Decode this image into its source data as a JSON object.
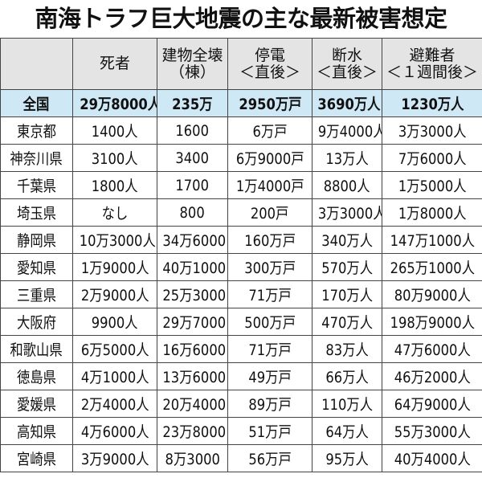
{
  "title": "南海トラフ巨大地震の主な最新被害想定",
  "table": {
    "header": [
      [
        "死者"
      ],
      [
        "建物全壊",
        "（棟）"
      ],
      [
        "停電",
        "＜直後＞"
      ],
      [
        "断水",
        "＜直後＞"
      ],
      [
        "避難者",
        "＜１週間後＞"
      ]
    ],
    "rows": [
      [
        "全国",
        "29万8000人",
        "235万",
        "2950万戸",
        "3690万人",
        "1230万人"
      ],
      [
        "東京都",
        "1400人",
        "1600",
        "6万戸",
        "9万4000人",
        "3万3000人"
      ],
      [
        "神奈川県",
        "3100人",
        "3400",
        "6万9000戸",
        "13万人",
        "7万6000人"
      ],
      [
        "千葉県",
        "1800人",
        "1700",
        "1万4000戸",
        "8800人",
        "1万5000人"
      ],
      [
        "埼玉県",
        "なし",
        "800",
        "200戸",
        "3万3000人",
        "1万8000人"
      ],
      [
        "静岡県",
        "10万3000人",
        "34万6000",
        "160万戸",
        "340万人",
        "147万1000人"
      ],
      [
        "愛知県",
        "1万9000人",
        "40万1000",
        "300万戸",
        "570万人",
        "265万1000人"
      ],
      [
        "三重県",
        "2万9000人",
        "25万3000",
        "71万戸",
        "170万人",
        "80万9000人"
      ],
      [
        "大阪府",
        "9900人",
        "29万7000",
        "500万戸",
        "470万人",
        "198万9000人"
      ],
      [
        "和歌山県",
        "6万5000人",
        "16万6000",
        "71万戸",
        "83万人",
        "47万6000人"
      ],
      [
        "徳島県",
        "4万1000人",
        "13万6000",
        "49万戸",
        "66万人",
        "46万2000人"
      ],
      [
        "愛媛県",
        "2万4000人",
        "20万4000",
        "89万戸",
        "110万人",
        "64万9000人"
      ],
      [
        "高知県",
        "4万6000人",
        "23万8000",
        "51万戸",
        "64万人",
        "55万3000人"
      ],
      [
        "宮崎県",
        "3万9000人",
        "8万3000",
        "56万戸",
        "95万人",
        "40万4000人"
      ]
    ]
  }
}
